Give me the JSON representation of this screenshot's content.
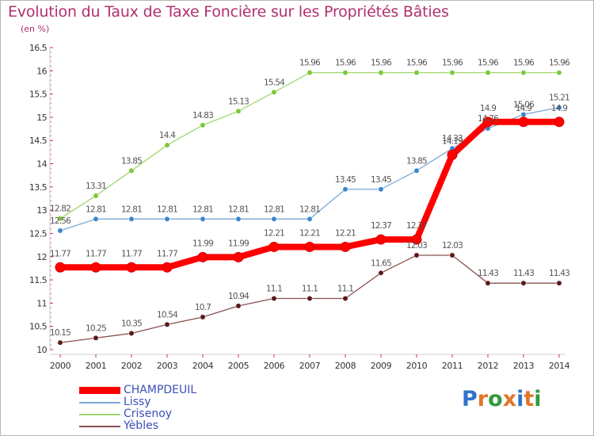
{
  "title": "Evolution du Taux de Taxe Foncière sur les Propriétés Bâties",
  "unit_label": "(en %)",
  "logo": {
    "text": "Proxiti",
    "colors": [
      "#2f73c9",
      "#e0762a",
      "#2e9a3c",
      "#e0762a",
      "#2f73c9",
      "#e0762a",
      "#2e9a3c"
    ]
  },
  "chart_data": {
    "type": "line",
    "title": "Evolution du Taux de Taxe Foncière sur les Propriétés Bâties",
    "ylabel": "(en %)",
    "xlabel": "",
    "x": [
      "2000",
      "2001",
      "2002",
      "2003",
      "2004",
      "2005",
      "2006",
      "2007",
      "2008",
      "2009",
      "2010",
      "2011",
      "2012",
      "2013",
      "2014"
    ],
    "ylim": [
      10,
      16.5
    ],
    "yticks": [
      "10",
      "10.5",
      "11",
      "11.5",
      "12",
      "12.5",
      "13",
      "13.5",
      "14",
      "14.5",
      "15",
      "15.5",
      "16",
      "16.5"
    ],
    "grid": false,
    "legend_position": "bottom-left",
    "series": [
      {
        "name": "CHAMPDEUIL",
        "color": "#ff0000",
        "thick": true,
        "values": [
          11.77,
          11.77,
          11.77,
          11.77,
          11.99,
          11.99,
          12.21,
          12.21,
          12.21,
          12.37,
          12.37,
          14.19,
          14.9,
          14.9,
          14.9
        ],
        "labels": [
          "11.77",
          "11.77",
          "11.77",
          "11.77",
          "11.99",
          "11.99",
          "12.21",
          "12.21",
          "12.21",
          "12.37",
          "12.37",
          "14.19",
          "14.9",
          "14.9",
          "14.9"
        ]
      },
      {
        "name": "Lissy",
        "color": "#7aa9d6",
        "marker": "#3a86cc",
        "values": [
          12.56,
          12.81,
          12.81,
          12.81,
          12.81,
          12.81,
          12.81,
          12.81,
          13.45,
          13.45,
          13.85,
          14.33,
          14.76,
          15.06,
          15.21
        ],
        "labels": [
          "12.56",
          "12.81",
          "12.81",
          "12.81",
          "12.81",
          "12.81",
          "12.81",
          "12.81",
          "13.45",
          "13.45",
          "13.85",
          "14.33",
          "14.76",
          "15.06",
          "15.21"
        ]
      },
      {
        "name": "Crisenoy",
        "color": "#9fd86e",
        "marker": "#79c93a",
        "values": [
          12.82,
          13.31,
          13.85,
          14.4,
          14.83,
          15.13,
          15.54,
          15.96,
          15.96,
          15.96,
          15.96,
          15.96,
          15.96,
          15.96,
          15.96
        ],
        "labels": [
          "12.82",
          "13.31",
          "13.85",
          "14.4",
          "14.83",
          "15.13",
          "15.54",
          "15.96",
          "15.96",
          "15.96",
          "15.96",
          "15.96",
          "15.96",
          "15.96",
          "15.96"
        ]
      },
      {
        "name": "Yèbles",
        "color": "#8a5050",
        "marker": "#5a1a1a",
        "values": [
          10.15,
          10.25,
          10.35,
          10.54,
          10.7,
          10.94,
          11.1,
          11.1,
          11.1,
          11.65,
          12.03,
          12.03,
          11.43,
          11.43,
          11.43
        ],
        "labels": [
          "10.15",
          "10.25",
          "10.35",
          "10.54",
          "10.7",
          "10.94",
          "11.1",
          "11.1",
          "11.1",
          "11.65",
          "12.03",
          "12.03",
          "11.43",
          "11.43",
          "11.43"
        ]
      }
    ]
  }
}
